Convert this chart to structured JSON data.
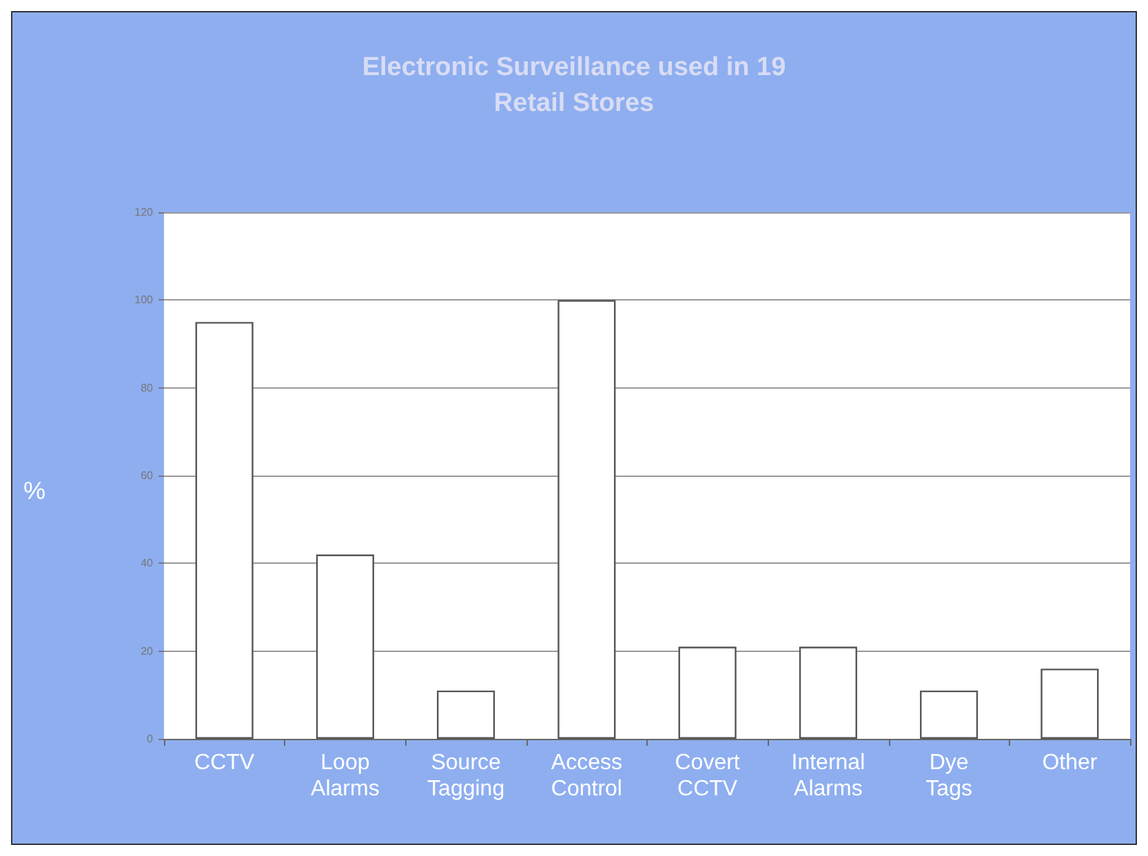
{
  "chart_data": {
    "type": "bar",
    "title": "Electronic Surveillance used in 19\nRetail Stores",
    "ylabel": "%",
    "categories": [
      "CCTV",
      "Loop Alarms",
      "Source Tagging",
      "Access Control",
      "Covert CCTV",
      "Internal Alarms",
      "Dye Tags",
      "Other"
    ],
    "values": [
      95,
      42,
      11,
      100,
      21,
      21,
      11,
      16
    ],
    "color": "#ffffff",
    "ylim": [
      0,
      120
    ],
    "yticks": [
      0,
      20,
      40,
      60,
      80,
      100,
      120
    ],
    "grid": "y"
  }
}
